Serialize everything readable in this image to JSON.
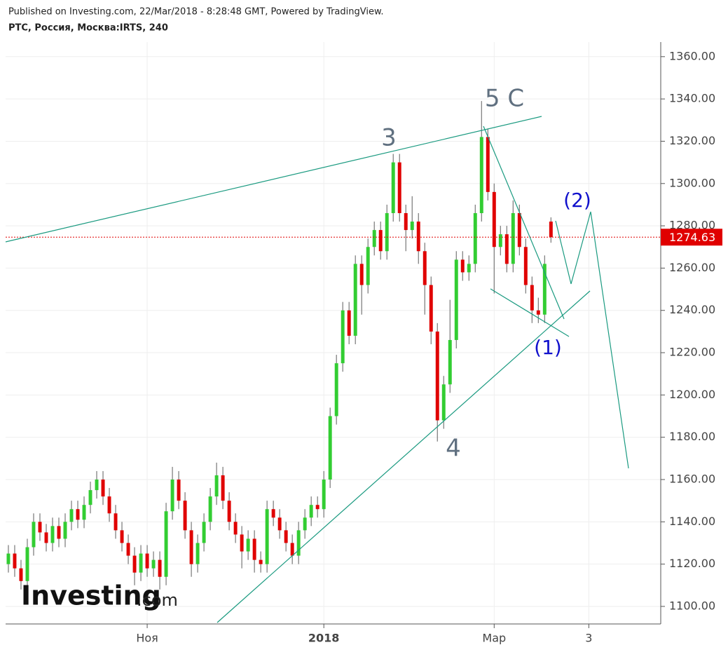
{
  "header": {
    "published": "Published on Investing.com, 22/Mar/2018 - 8:28:48 GMT, Powered by TradingView.",
    "symbol": "РТС, Россия, Москва:IRTS, 240"
  },
  "logo": {
    "brand": "Investing",
    "suffix": ".com"
  },
  "chart_data": {
    "type": "candlestick",
    "xlim": [
      -0.44,
      103.4
    ],
    "xticks": [
      {
        "value": 22,
        "label": "Ноя"
      },
      {
        "value": 50,
        "label": "2018"
      },
      {
        "value": 77,
        "label": "Мар"
      },
      {
        "value": 92,
        "label": "3"
      }
    ],
    "ylim": [
      1091.7,
      1366.9
    ],
    "yticks": [
      {
        "value": 1100,
        "label": "1100.00"
      },
      {
        "value": 1120,
        "label": "1120.00"
      },
      {
        "value": 1140,
        "label": "1140.00"
      },
      {
        "value": 1160,
        "label": "1160.00"
      },
      {
        "value": 1180,
        "label": "1180.00"
      },
      {
        "value": 1200,
        "label": "1200.00"
      },
      {
        "value": 1220,
        "label": "1220.00"
      },
      {
        "value": 1240,
        "label": "1240.00"
      },
      {
        "value": 1260,
        "label": "1260.00"
      },
      {
        "value": 1280,
        "label": "1280.00"
      },
      {
        "value": 1300,
        "label": "1300.00"
      },
      {
        "value": 1320,
        "label": "1320.00"
      },
      {
        "value": 1340,
        "label": "1340.00"
      },
      {
        "value": 1360,
        "label": "1360.00"
      }
    ],
    "grid": true,
    "up_color": "#32cd32",
    "down_color": "#e00000",
    "wick_color": "#777777",
    "last_price": 1274.63,
    "last_price_color": "#e00000",
    "open": [
      1120,
      1125,
      1118,
      1112,
      1128,
      1140,
      1135,
      1130,
      1138,
      1132,
      1140,
      1146,
      1141,
      1148,
      1155,
      1160,
      1152,
      1144,
      1136,
      1130,
      1124,
      1116,
      1125,
      1118,
      1122,
      1114,
      1145,
      1160,
      1150,
      1136,
      1120,
      1130,
      1140,
      1152,
      1162,
      1150,
      1140,
      1134,
      1126,
      1132,
      1122,
      1120,
      1146,
      1142,
      1136,
      1130,
      1124,
      1136,
      1142,
      1148,
      1146,
      1160,
      1190,
      1215,
      1240,
      1228,
      1262,
      1252,
      1270,
      1278,
      1268,
      1286,
      1310,
      1286,
      1278,
      1282,
      1268,
      1252,
      1230,
      1188,
      1205,
      1226,
      1264,
      1258,
      1262,
      1286,
      1322,
      1296,
      1270,
      1276,
      1262,
      1286,
      1270,
      1252,
      1240,
      1238,
      1282
    ],
    "high": [
      1129,
      1129,
      1122,
      1132,
      1144,
      1144,
      1139,
      1142,
      1142,
      1144,
      1150,
      1150,
      1152,
      1159,
      1164,
      1164,
      1156,
      1148,
      1140,
      1134,
      1128,
      1129,
      1129,
      1126,
      1126,
      1149,
      1166,
      1164,
      1154,
      1140,
      1134,
      1144,
      1156,
      1168,
      1166,
      1154,
      1144,
      1138,
      1136,
      1136,
      1126,
      1150,
      1150,
      1146,
      1140,
      1134,
      1140,
      1146,
      1152,
      1152,
      1164,
      1194,
      1219,
      1244,
      1244,
      1266,
      1266,
      1274,
      1282,
      1282,
      1290,
      1314,
      1314,
      1290,
      1294,
      1286,
      1272,
      1256,
      1234,
      1209,
      1245,
      1268,
      1268,
      1266,
      1290,
      1339,
      1326,
      1300,
      1280,
      1280,
      1292,
      1290,
      1274,
      1256,
      1246,
      1266,
      1284
    ],
    "low": [
      1116,
      1114,
      1108,
      1108,
      1124,
      1131,
      1126,
      1126,
      1128,
      1128,
      1136,
      1137,
      1137,
      1144,
      1151,
      1148,
      1140,
      1132,
      1126,
      1120,
      1110,
      1112,
      1114,
      1114,
      1108,
      1110,
      1141,
      1146,
      1132,
      1114,
      1116,
      1126,
      1136,
      1148,
      1146,
      1136,
      1130,
      1118,
      1122,
      1116,
      1116,
      1116,
      1138,
      1132,
      1126,
      1120,
      1120,
      1132,
      1138,
      1142,
      1142,
      1156,
      1186,
      1211,
      1224,
      1224,
      1238,
      1248,
      1266,
      1264,
      1264,
      1282,
      1282,
      1268,
      1274,
      1262,
      1238,
      1224,
      1178,
      1184,
      1201,
      1222,
      1254,
      1254,
      1258,
      1282,
      1292,
      1248,
      1266,
      1258,
      1258,
      1266,
      1248,
      1234,
      1234,
      1234,
      1272
    ],
    "close": [
      1125,
      1118,
      1112,
      1128,
      1140,
      1135,
      1130,
      1138,
      1132,
      1140,
      1146,
      1141,
      1148,
      1155,
      1160,
      1152,
      1144,
      1136,
      1130,
      1124,
      1116,
      1125,
      1118,
      1122,
      1114,
      1145,
      1160,
      1150,
      1136,
      1120,
      1130,
      1140,
      1152,
      1162,
      1150,
      1140,
      1134,
      1126,
      1132,
      1122,
      1120,
      1146,
      1142,
      1136,
      1130,
      1124,
      1136,
      1142,
      1148,
      1146,
      1160,
      1190,
      1215,
      1240,
      1228,
      1262,
      1252,
      1270,
      1278,
      1268,
      1286,
      1310,
      1286,
      1278,
      1282,
      1268,
      1252,
      1230,
      1188,
      1205,
      1226,
      1264,
      1258,
      1262,
      1286,
      1322,
      1296,
      1270,
      1276,
      1262,
      1286,
      1270,
      1252,
      1240,
      1238,
      1262,
      1274.63
    ],
    "annotations": [
      "3",
      "5 C",
      "4",
      "(1)",
      "(2)"
    ]
  }
}
